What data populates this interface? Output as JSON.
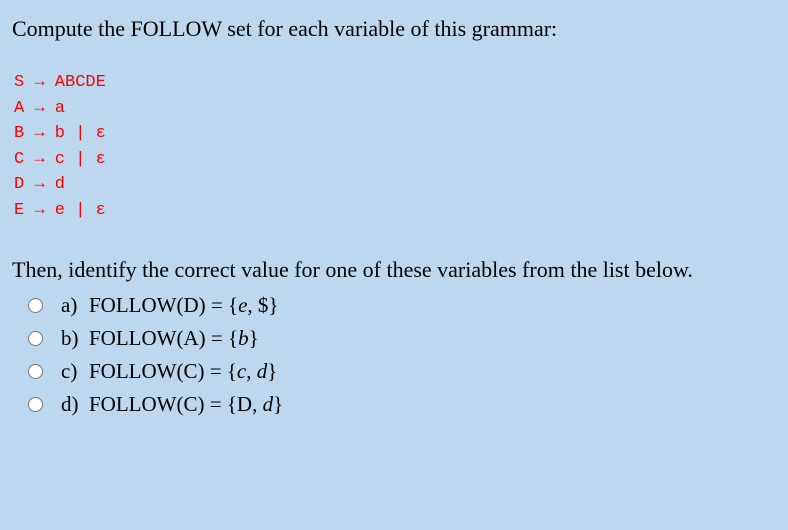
{
  "background_color": "#bdd7ee",
  "text_color": "#000000",
  "grammar_color": "#ff0000",
  "question": "Compute the FOLLOW set for each variable of this grammar:",
  "grammar_lines": [
    "S → ABCDE",
    "A → a",
    "B → b | ε",
    "C → c | ε",
    "D → d",
    "E → e | ε"
  ],
  "instruction": "Then, identify the correct value for one of these variables from the list below.",
  "options": [
    {
      "letter": "a)",
      "text_parts": [
        "FOLLOW(D) = {",
        "e",
        ", $}"
      ],
      "italic_idx": 1
    },
    {
      "letter": "b)",
      "text_parts": [
        "FOLLOW(A) = {",
        "b",
        "}"
      ],
      "italic_idx": 1
    },
    {
      "letter": "c)",
      "text_parts": [
        "FOLLOW(C) = {",
        "c",
        ", ",
        "d",
        "}"
      ],
      "italic_idx": [
        1,
        3
      ]
    },
    {
      "letter": "d)",
      "text_parts": [
        "FOLLOW(C) = {D, ",
        "d",
        "}"
      ],
      "italic_idx": 1
    }
  ]
}
